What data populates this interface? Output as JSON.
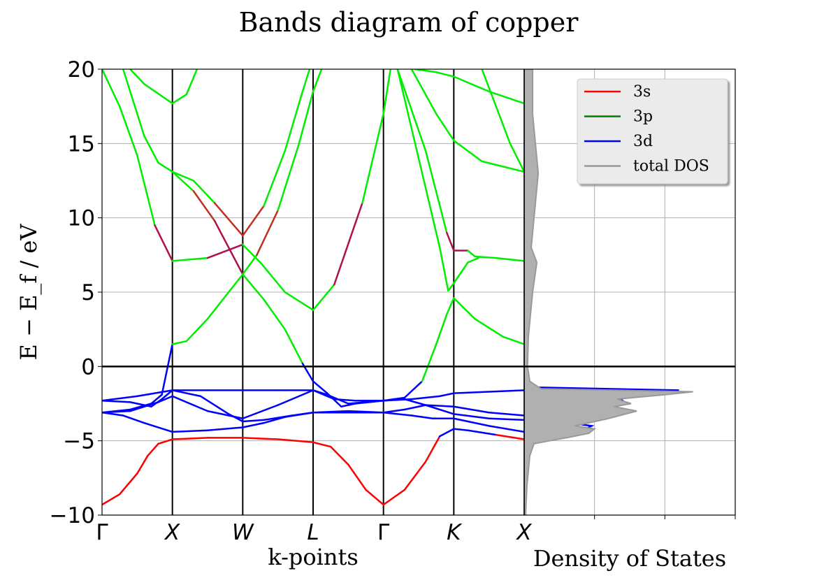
{
  "title": "Bands diagram of copper",
  "chart_data": [
    {
      "type": "line",
      "title": "Bands diagram of copper",
      "xlabel": "k-points",
      "ylabel": "E − E_f  /  eV",
      "ylim": [
        -10,
        20
      ],
      "yticks": [
        "−10",
        "−5",
        "0",
        "5",
        "10",
        "15",
        "20"
      ],
      "ytick_values": [
        -10,
        -5,
        0,
        5,
        10,
        15,
        20
      ],
      "kpoint_labels": [
        "Γ",
        "X",
        "W",
        "L",
        "Γ",
        "K",
        "X"
      ],
      "grid": true,
      "fermi_level": 0,
      "band_colors": {
        "s": "#ff0000",
        "p": "#00ee00",
        "d": "#0000ff"
      },
      "bands": [
        {
          "name": "band-1",
          "points": [
            [
              0,
              -9.3
            ],
            [
              0.25,
              -8.6
            ],
            [
              0.5,
              -7.2
            ],
            [
              0.65,
              -6.0
            ],
            [
              0.8,
              -5.2
            ],
            [
              1,
              -4.9
            ],
            [
              1.5,
              -4.8
            ],
            [
              2,
              -4.8
            ],
            [
              2.5,
              -4.9
            ],
            [
              3,
              -5.1
            ],
            [
              3.25,
              -5.4
            ],
            [
              3.5,
              -6.6
            ],
            [
              3.75,
              -8.3
            ],
            [
              4,
              -9.3
            ],
            [
              4.3,
              -8.3
            ],
            [
              4.6,
              -6.4
            ],
            [
              4.8,
              -4.7
            ],
            [
              5,
              -4.2
            ],
            [
              5.2,
              -4.3
            ],
            [
              5.6,
              -4.6
            ],
            [
              6,
              -4.9
            ]
          ]
        },
        {
          "name": "band-2",
          "points": [
            [
              0,
              -3.1
            ],
            [
              0.3,
              -3.3
            ],
            [
              0.6,
              -3.8
            ],
            [
              1,
              -4.4
            ],
            [
              1.5,
              -4.3
            ],
            [
              2,
              -4.1
            ],
            [
              2.3,
              -3.8
            ],
            [
              2.6,
              -3.4
            ],
            [
              3,
              -3.1
            ],
            [
              3.3,
              -3.1
            ],
            [
              3.6,
              -3.1
            ],
            [
              4,
              -3.1
            ],
            [
              4.4,
              -3.3
            ],
            [
              4.7,
              -3.5
            ],
            [
              5,
              -3.5
            ],
            [
              5.5,
              -4.0
            ],
            [
              6,
              -4.4
            ]
          ]
        },
        {
          "name": "band-3",
          "points": [
            [
              0,
              -3.1
            ],
            [
              0.4,
              -3.0
            ],
            [
              0.8,
              -2.4
            ],
            [
              1,
              -2.0
            ],
            [
              1.5,
              -3.0
            ],
            [
              2,
              -3.5
            ],
            [
              2.5,
              -2.6
            ],
            [
              3,
              -1.6
            ],
            [
              3.2,
              -1.9
            ],
            [
              3.5,
              -2.5
            ],
            [
              4,
              -2.3
            ],
            [
              4.3,
              -2.2
            ],
            [
              4.6,
              -2.6
            ],
            [
              5,
              -3.2
            ],
            [
              5.5,
              -3.5
            ],
            [
              6,
              -3.6
            ]
          ]
        },
        {
          "name": "band-4",
          "points": [
            [
              0,
              -2.3
            ],
            [
              0.4,
              -2.4
            ],
            [
              0.7,
              -2.7
            ],
            [
              0.85,
              -2.2
            ],
            [
              1,
              -1.6
            ],
            [
              1.4,
              -2.0
            ],
            [
              1.8,
              -3.2
            ],
            [
              2,
              -3.7
            ],
            [
              2.3,
              -3.6
            ],
            [
              2.7,
              -3.3
            ],
            [
              3,
              -3.1
            ],
            [
              3.5,
              -3.0
            ],
            [
              4,
              -3.1
            ],
            [
              4.3,
              -2.9
            ],
            [
              4.6,
              -2.6
            ],
            [
              5,
              -2.7
            ],
            [
              5.5,
              -3.1
            ],
            [
              6,
              -3.3
            ]
          ]
        },
        {
          "name": "band-5",
          "points": [
            [
              0,
              -2.3
            ],
            [
              0.5,
              -2.0
            ],
            [
              1,
              -1.6
            ],
            [
              1.5,
              -1.6
            ],
            [
              2,
              -1.6
            ],
            [
              2.5,
              -1.6
            ],
            [
              3,
              -1.6
            ],
            [
              3.3,
              -2.2
            ],
            [
              3.6,
              -2.3
            ],
            [
              4,
              -2.3
            ],
            [
              4.4,
              -2.2
            ],
            [
              4.8,
              -2.0
            ],
            [
              5,
              -1.8
            ],
            [
              5.5,
              -1.7
            ],
            [
              6,
              -1.6
            ]
          ]
        },
        {
          "name": "band-6",
          "points": [
            [
              0,
              -3.1
            ],
            [
              0.4,
              -2.9
            ],
            [
              0.7,
              -2.5
            ],
            [
              0.85,
              -1.9
            ],
            [
              1,
              1.5
            ],
            [
              1.2,
              1.7
            ],
            [
              1.5,
              3.2
            ],
            [
              1.8,
              5.0
            ],
            [
              2,
              6.2
            ],
            [
              2.3,
              4.5
            ],
            [
              2.6,
              2.5
            ],
            [
              2.85,
              0.2
            ],
            [
              3,
              -1.0
            ],
            [
              3.2,
              -1.8
            ],
            [
              3.4,
              -2.7
            ],
            [
              3.6,
              -2.5
            ],
            [
              4,
              -2.3
            ],
            [
              4.3,
              -2.1
            ],
            [
              4.55,
              -1.0
            ],
            [
              4.75,
              1.5
            ],
            [
              4.9,
              3.5
            ],
            [
              5,
              4.6
            ],
            [
              5.3,
              3.2
            ],
            [
              5.7,
              2.0
            ],
            [
              6,
              1.5
            ]
          ]
        },
        {
          "name": "band-7",
          "points": [
            [
              0,
              20
            ],
            [
              0.25,
              17.5
            ],
            [
              0.5,
              14.2
            ],
            [
              0.75,
              9.5
            ],
            [
              1,
              7.1
            ],
            [
              1.5,
              7.3
            ],
            [
              2,
              8.2
            ],
            [
              2.25,
              7.0
            ],
            [
              2.6,
              5.0
            ],
            [
              3,
              3.8
            ],
            [
              3.3,
              5.5
            ],
            [
              3.7,
              11.0
            ],
            [
              4,
              17.0
            ],
            [
              4.1,
              20
            ]
          ]
        },
        {
          "name": "band-8",
          "points": [
            [
              0.3,
              20
            ],
            [
              0.6,
              15.5
            ],
            [
              0.8,
              13.7
            ],
            [
              1,
              13.1
            ],
            [
              1.3,
              11.8
            ],
            [
              1.6,
              9.8
            ],
            [
              2,
              6.2
            ],
            [
              2.2,
              7.5
            ],
            [
              2.5,
              10.5
            ],
            [
              2.8,
              15.0
            ],
            [
              3,
              18.5
            ],
            [
              3.12,
              20
            ]
          ]
        },
        {
          "name": "band-9",
          "points": [
            [
              1,
              13.1
            ],
            [
              1.3,
              12.5
            ],
            [
              1.6,
              11.0
            ],
            [
              2,
              8.8
            ],
            [
              2.3,
              10.8
            ],
            [
              2.6,
              14.5
            ],
            [
              2.85,
              18.5
            ],
            [
              2.95,
              20
            ]
          ]
        },
        {
          "name": "band-10",
          "points": [
            [
              0.4,
              20
            ],
            [
              0.6,
              19.0
            ],
            [
              1,
              17.7
            ],
            [
              1.2,
              18.3
            ],
            [
              1.35,
              20
            ]
          ]
        },
        {
          "name": "band-11",
          "points": [
            [
              4.2,
              20
            ],
            [
              4.6,
              14.5
            ],
            [
              4.9,
              9.0
            ],
            [
              5,
              7.8
            ],
            [
              5.2,
              7.8
            ],
            [
              5.3,
              7.4
            ],
            [
              5.6,
              7.3
            ],
            [
              6,
              7.1
            ]
          ]
        },
        {
          "name": "band-12",
          "points": [
            [
              4.2,
              20
            ],
            [
              4.5,
              14.0
            ],
            [
              4.8,
              8.0
            ],
            [
              4.92,
              5.1
            ],
            [
              5,
              5.6
            ],
            [
              5.2,
              7.0
            ],
            [
              5.35,
              7.3
            ]
          ]
        },
        {
          "name": "band-13",
          "points": [
            [
              4.4,
              20
            ],
            [
              4.75,
              17.0
            ],
            [
              5,
              15.2
            ],
            [
              5.4,
              13.8
            ],
            [
              6,
              13.1
            ]
          ]
        },
        {
          "name": "band-14",
          "points": [
            [
              4.45,
              20
            ],
            [
              4.75,
              19.8
            ],
            [
              5,
              19.5
            ],
            [
              5.5,
              18.5
            ],
            [
              6,
              17.7
            ]
          ]
        },
        {
          "name": "band-15",
          "points": [
            [
              5.4,
              20
            ],
            [
              5.8,
              15.0
            ],
            [
              6,
              13.1
            ]
          ]
        }
      ]
    },
    {
      "type": "area",
      "xlabel": "Density of States",
      "ylim": [
        -10,
        20
      ],
      "legend_position": "top-right",
      "legend": [
        "3s",
        "3p",
        "3d",
        "total DOS"
      ],
      "series": [
        {
          "name": "3s",
          "color": "#ff0000",
          "points": [
            [
              -10,
              0.02
            ],
            [
              -8,
              0.03
            ],
            [
              -6,
              0.05
            ],
            [
              -5.0,
              0.1
            ],
            [
              -4.6,
              0.15
            ],
            [
              -4,
              0.03
            ],
            [
              0,
              0.01
            ],
            [
              5,
              0.02
            ],
            [
              10,
              0.03
            ],
            [
              15,
              0.04
            ],
            [
              20,
              0.04
            ]
          ]
        },
        {
          "name": "3p",
          "color": "#008000",
          "points": [
            [
              -10,
              0.0
            ],
            [
              -5,
              0.02
            ],
            [
              -4,
              0.05
            ],
            [
              -3,
              0.1
            ],
            [
              -2,
              0.05
            ],
            [
              0,
              0.06
            ],
            [
              5,
              0.08
            ],
            [
              10,
              0.1
            ],
            [
              13,
              0.12
            ],
            [
              15,
              0.1
            ],
            [
              17,
              0.09
            ],
            [
              20,
              0.1
            ]
          ]
        },
        {
          "name": "3d",
          "color": "#0000ff",
          "points": [
            [
              -10,
              0.0
            ],
            [
              -7,
              0.02
            ],
            [
              -5.5,
              0.1
            ],
            [
              -5,
              0.5
            ],
            [
              -4.8,
              1.0
            ],
            [
              -4.4,
              2.0
            ],
            [
              -4.0,
              2.4
            ],
            [
              -3.8,
              1.6
            ],
            [
              -3.3,
              2.4
            ],
            [
              -3.0,
              3.7
            ],
            [
              -2.6,
              2.9
            ],
            [
              -2.3,
              3.5
            ],
            [
              -2.0,
              3.3
            ],
            [
              -1.8,
              4.5
            ],
            [
              -1.6,
              5.5
            ],
            [
              -1.4,
              0.3
            ],
            [
              -1,
              0.15
            ],
            [
              0,
              0.1
            ],
            [
              5,
              0.04
            ],
            [
              10,
              0.02
            ],
            [
              15,
              0.02
            ],
            [
              20,
              0.02
            ]
          ]
        },
        {
          "name": "total DOS",
          "color": "#999999",
          "points": [
            [
              -10,
              0.05
            ],
            [
              -8,
              0.1
            ],
            [
              -6,
              0.2
            ],
            [
              -5.2,
              0.35
            ],
            [
              -5,
              0.9
            ],
            [
              -4.8,
              1.5
            ],
            [
              -4.5,
              2.3
            ],
            [
              -4.2,
              2.5
            ],
            [
              -4.0,
              1.8
            ],
            [
              -3.5,
              3.0
            ],
            [
              -3.0,
              4.0
            ],
            [
              -2.7,
              3.2
            ],
            [
              -2.5,
              3.8
            ],
            [
              -2.2,
              3.3
            ],
            [
              -1.9,
              5.0
            ],
            [
              -1.7,
              6.0
            ],
            [
              -1.5,
              0.6
            ],
            [
              -1,
              0.2
            ],
            [
              0,
              0.12
            ],
            [
              2,
              0.15
            ],
            [
              5,
              0.3
            ],
            [
              7,
              0.45
            ],
            [
              8,
              0.25
            ],
            [
              10,
              0.35
            ],
            [
              12,
              0.45
            ],
            [
              13,
              0.5
            ],
            [
              15,
              0.4
            ],
            [
              17,
              0.3
            ],
            [
              20,
              0.3
            ]
          ]
        }
      ]
    }
  ]
}
